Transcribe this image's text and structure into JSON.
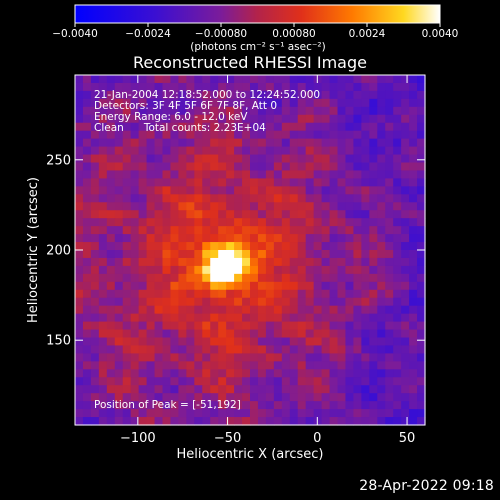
{
  "chart_data": {
    "type": "heatmap",
    "title": "Reconstructed RHESSI Image",
    "xlabel": "Heliocentric X (arcsec)",
    "ylabel": "Heliocentric Y (arcsec)",
    "xlim": [
      -135,
      60
    ],
    "ylim": [
      103,
      297
    ],
    "xticks": [
      -100,
      -50,
      0,
      50
    ],
    "xtick_labels": [
      "−100",
      "−50",
      "0",
      "50"
    ],
    "yticks": [
      150,
      200,
      250
    ],
    "ytick_labels": [
      "150",
      "200",
      "250"
    ],
    "annotations": [
      "21-Jan-2004 12:18:52.000 to 12:24:52.000",
      "Detectors: 3F 4F 5F 6F 7F 8F, Att 0",
      "Energy Range: 6.0 - 12.0 keV",
      "Clean      Total counts: 2.23E+04"
    ],
    "peak_label": "Position of Peak = [-51,192]",
    "peak": [
      -51,
      192
    ],
    "colorbar": {
      "range": [
        -0.004,
        0.004
      ],
      "tick_labels": [
        "−0.0040",
        "−0.0024",
        "−0.00080",
        "0.00080",
        "0.0024",
        "0.0040"
      ],
      "unit_label": "(photons cm⁻² s⁻¹ asec⁻²)",
      "colormap": "rainbow-like (blue to white)"
    },
    "grid": false
  },
  "footer": {
    "timestamp": "28-Apr-2022 09:18"
  }
}
